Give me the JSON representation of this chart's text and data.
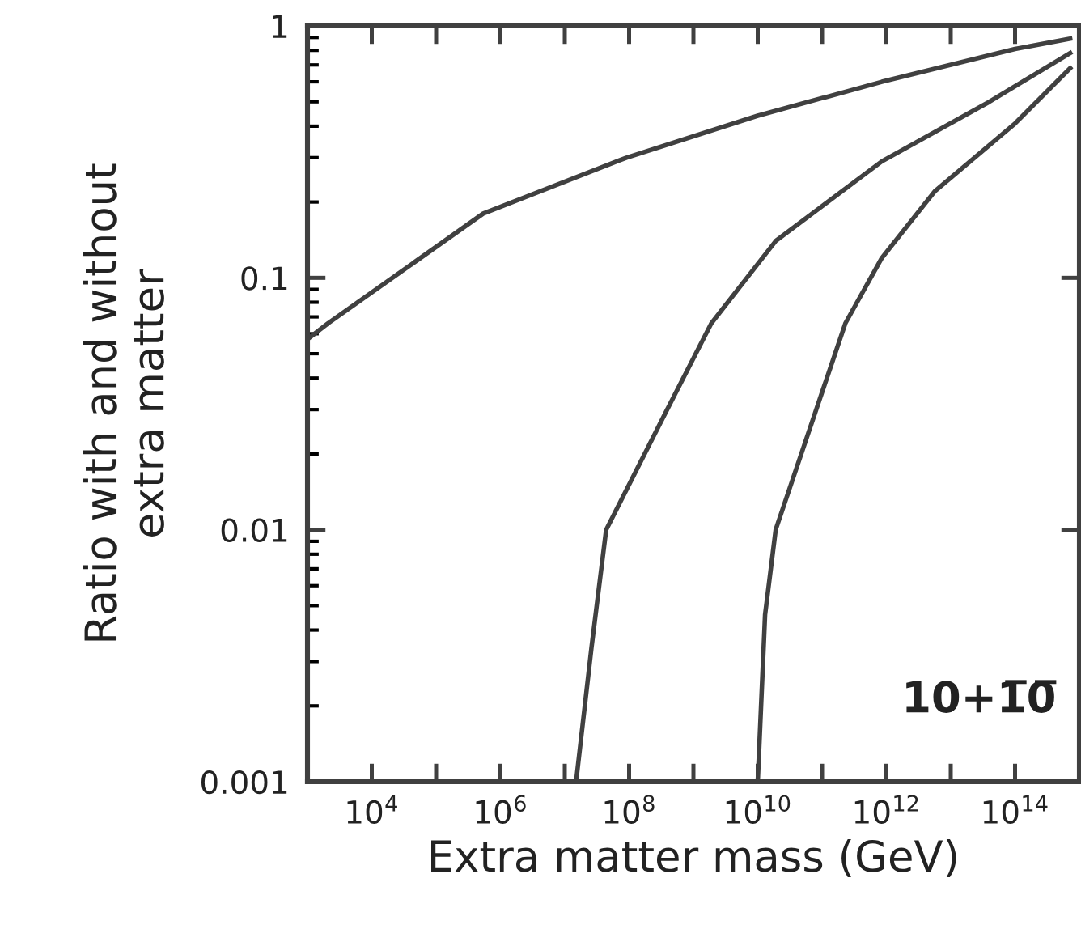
{
  "chart_data": {
    "type": "line",
    "xlabel": "Extra matter mass (GeV)",
    "ylabel": "Ratio with and without\nextra matter",
    "log": "xy",
    "xlim": [
      1000,
      1000000000000000.0
    ],
    "ylim": [
      0.001,
      1
    ],
    "xticks": [
      {
        "value": 10000,
        "label": "10$^{4}$"
      },
      {
        "value": 100000,
        "label": null
      },
      {
        "value": 1000000,
        "label": "10$^{6}$"
      },
      {
        "value": 10000000,
        "label": null
      },
      {
        "value": 100000000,
        "label": "10$^{8}$"
      },
      {
        "value": 1000000000,
        "label": null
      },
      {
        "value": 10000000000,
        "label": "10$^{10}$"
      },
      {
        "value": 100000000000,
        "label": null
      },
      {
        "value": 1000000000000,
        "label": "10$^{12}$"
      },
      {
        "value": 10000000000000,
        "label": null
      },
      {
        "value": 100000000000000,
        "label": "10$^{14}$"
      }
    ],
    "yticks": [
      {
        "value": 0.001,
        "label": "0.001"
      },
      {
        "value": 0.01,
        "label": "0.01"
      },
      {
        "value": 0.1,
        "label": "0.1"
      },
      {
        "value": 1,
        "label": "1"
      }
    ],
    "annotations": [
      "10+1̅0̅"
    ],
    "series": [
      {
        "color": "#404040",
        "x": [
          1000,
          2090,
          540000,
          91000000,
          10000000000,
          850000000000,
          100000000000000,
          720000000000000
        ],
        "values": [
          0.057,
          0.066,
          0.18,
          0.3,
          0.44,
          0.6,
          0.81,
          0.89
        ]
      },
      {
        "color": "#404040",
        "x": [
          15000000,
          26000000,
          44000000,
          340000000,
          1900000000,
          19000000000,
          850000000000,
          40000000000000,
          720000000000000
        ],
        "values": [
          0.001,
          0.0034,
          0.01,
          0.028,
          0.066,
          0.14,
          0.29,
          0.5,
          0.78
        ]
      },
      {
        "color": "#404040",
        "x": [
          10000000000,
          13000000000,
          19000000000,
          230000000000,
          850000000000,
          5600000000000,
          100000000000000,
          720000000000000
        ],
        "values": [
          0.001,
          0.0046,
          0.01,
          0.066,
          0.12,
          0.22,
          0.41,
          0.68
        ]
      }
    ],
    "grid": false,
    "legend": false,
    "marker": "none",
    "line_style": "solid"
  }
}
